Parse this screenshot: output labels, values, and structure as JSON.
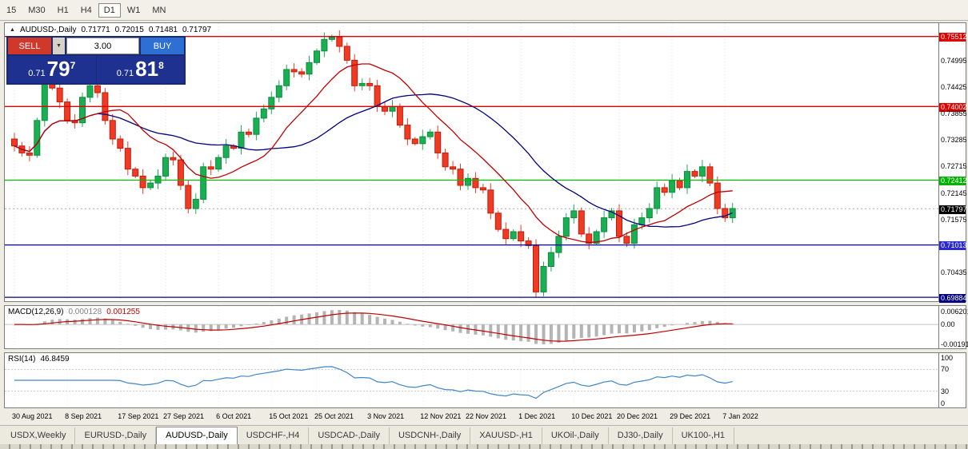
{
  "toolbar": {
    "timeframes": [
      {
        "label": "15",
        "active": false
      },
      {
        "label": "M30",
        "active": false
      },
      {
        "label": "H1",
        "active": false
      },
      {
        "label": "H4",
        "active": false
      },
      {
        "label": "D1",
        "active": true
      },
      {
        "label": "W1",
        "active": false
      },
      {
        "label": "MN",
        "active": false
      }
    ]
  },
  "chart_header": {
    "collapse_icon": "▲",
    "symbol": "AUDUSD-,Daily",
    "open": "0.71771",
    "high": "0.72015",
    "low": "0.71481",
    "close": "0.71797"
  },
  "trade_panel": {
    "sell_label": "SELL",
    "buy_label": "BUY",
    "volume": "3.00",
    "spinner_icon": "▼",
    "sell_price": {
      "prefix": "0.71",
      "big": "79",
      "sup": "7"
    },
    "buy_price": {
      "prefix": "0.71",
      "big": "81",
      "sup": "8"
    }
  },
  "price_axis": [
    {
      "text": "0.75512",
      "price": 0.75512,
      "style": "red"
    },
    {
      "text": "0.74995",
      "price": 0.74995,
      "style": "plain"
    },
    {
      "text": "0.74425",
      "price": 0.74425,
      "style": "plain"
    },
    {
      "text": "0.74002",
      "price": 0.74002,
      "style": "red"
    },
    {
      "text": "0.73855",
      "price": 0.73855,
      "style": "plain"
    },
    {
      "text": "0.73285",
      "price": 0.73285,
      "style": "plain"
    },
    {
      "text": "0.72715",
      "price": 0.72715,
      "style": "plain"
    },
    {
      "text": "0.72412",
      "price": 0.72412,
      "style": "green"
    },
    {
      "text": "0.72145",
      "price": 0.72145,
      "style": "plain"
    },
    {
      "text": "0.71797",
      "price": 0.71797,
      "style": "black"
    },
    {
      "text": "0.71575",
      "price": 0.71575,
      "style": "plain"
    },
    {
      "text": "0.71013",
      "price": 0.71013,
      "style": "blue"
    },
    {
      "text": "0.70435",
      "price": 0.70435,
      "style": "plain"
    },
    {
      "text": "0.69884",
      "price": 0.69884,
      "style": "navy"
    }
  ],
  "macd_panel": {
    "name": "MACD(12,26,9)",
    "value_main": "0.000128",
    "value_signal": "0.001255",
    "axis": [
      "0.006201",
      "0.00",
      "-0.001917"
    ]
  },
  "rsi_panel": {
    "name": "RSI(14)",
    "value": "46.8459",
    "axis_top": "100",
    "axis_70": "70",
    "axis_30": "30",
    "axis_bottom": "0"
  },
  "tabs": [
    {
      "label": "USDX,Weekly",
      "active": false
    },
    {
      "label": "EURUSD-,Daily",
      "active": false
    },
    {
      "label": "AUDUSD-,Daily",
      "active": true
    },
    {
      "label": "USDCHF-,H4",
      "active": false
    },
    {
      "label": "USDCAD-,Daily",
      "active": false
    },
    {
      "label": "USDCNH-,Daily",
      "active": false
    },
    {
      "label": "XAUUSD-,H1",
      "active": false
    },
    {
      "label": "UKOil-,Daily",
      "active": false
    },
    {
      "label": "DJ30-,Daily",
      "active": false
    },
    {
      "label": "UK100-,H1",
      "active": false
    }
  ],
  "chart_data": {
    "type": "candlestick",
    "title": "AUDUSD-,Daily",
    "price_range": {
      "top": 0.758,
      "bottom": 0.698
    },
    "first_open": 0.733,
    "closes": [
      0.7315,
      0.73,
      0.7295,
      0.737,
      0.7455,
      0.744,
      0.741,
      0.737,
      0.7365,
      0.742,
      0.7445,
      0.743,
      0.737,
      0.733,
      0.731,
      0.7265,
      0.725,
      0.7225,
      0.7235,
      0.725,
      0.729,
      0.7285,
      0.723,
      0.718,
      0.72,
      0.727,
      0.7265,
      0.729,
      0.7315,
      0.731,
      0.7345,
      0.734,
      0.7375,
      0.7395,
      0.742,
      0.7445,
      0.748,
      0.7475,
      0.747,
      0.7495,
      0.752,
      0.7545,
      0.755,
      0.753,
      0.75,
      0.7445,
      0.745,
      0.7445,
      0.74,
      0.739,
      0.74,
      0.736,
      0.733,
      0.732,
      0.7335,
      0.7345,
      0.73,
      0.727,
      0.7265,
      0.723,
      0.7245,
      0.7225,
      0.722,
      0.717,
      0.7135,
      0.7115,
      0.713,
      0.711,
      0.71,
      0.7,
      0.7055,
      0.7085,
      0.712,
      0.716,
      0.7175,
      0.7125,
      0.7105,
      0.713,
      0.716,
      0.7175,
      0.712,
      0.7105,
      0.7145,
      0.716,
      0.718,
      0.7225,
      0.7215,
      0.724,
      0.7225,
      0.726,
      0.725,
      0.727,
      0.7235,
      0.718,
      0.716,
      0.718
    ],
    "ma_fast": 12,
    "ma_slow": 26,
    "macd_params": {
      "fast": 12,
      "slow": 26,
      "signal": 9
    },
    "rsi_period": 14,
    "rsi_levels": [
      70,
      30
    ],
    "current_price": 0.71797,
    "hlines": [
      {
        "price": 0.75512,
        "color": "#e00000"
      },
      {
        "price": 0.74002,
        "color": "#e00000"
      },
      {
        "price": 0.72412,
        "color": "#00bb00"
      },
      {
        "price": 0.71013,
        "color": "#0000a0"
      },
      {
        "price": 0.69884,
        "color": "#000080"
      }
    ],
    "date_labels": [
      {
        "t": "30 Aug 2021",
        "i": 0
      },
      {
        "t": "8 Sep 2021",
        "i": 7
      },
      {
        "t": "17 Sep 2021",
        "i": 14
      },
      {
        "t": "27 Sep 2021",
        "i": 20
      },
      {
        "t": "6 Oct 2021",
        "i": 27
      },
      {
        "t": "15 Oct 2021",
        "i": 34
      },
      {
        "t": "25 Oct 2021",
        "i": 40
      },
      {
        "t": "3 Nov 2021",
        "i": 47
      },
      {
        "t": "12 Nov 2021",
        "i": 54
      },
      {
        "t": "22 Nov 2021",
        "i": 60
      },
      {
        "t": "1 Dec 2021",
        "i": 67
      },
      {
        "t": "10 Dec 2021",
        "i": 74
      },
      {
        "t": "20 Dec 2021",
        "i": 80
      },
      {
        "t": "29 Dec 2021",
        "i": 87
      },
      {
        "t": "7 Jan 2022",
        "i": 94
      }
    ],
    "colors": {
      "up": "#19af52",
      "up_border": "#0e8a3e",
      "down": "#ef3b24",
      "down_border": "#c21d0a",
      "ma_fast": "#c00000",
      "ma_slow": "#000080",
      "macd_hist": "#b4b4b4",
      "macd_signal": "#c00000",
      "rsi_line": "#4086c8"
    }
  }
}
